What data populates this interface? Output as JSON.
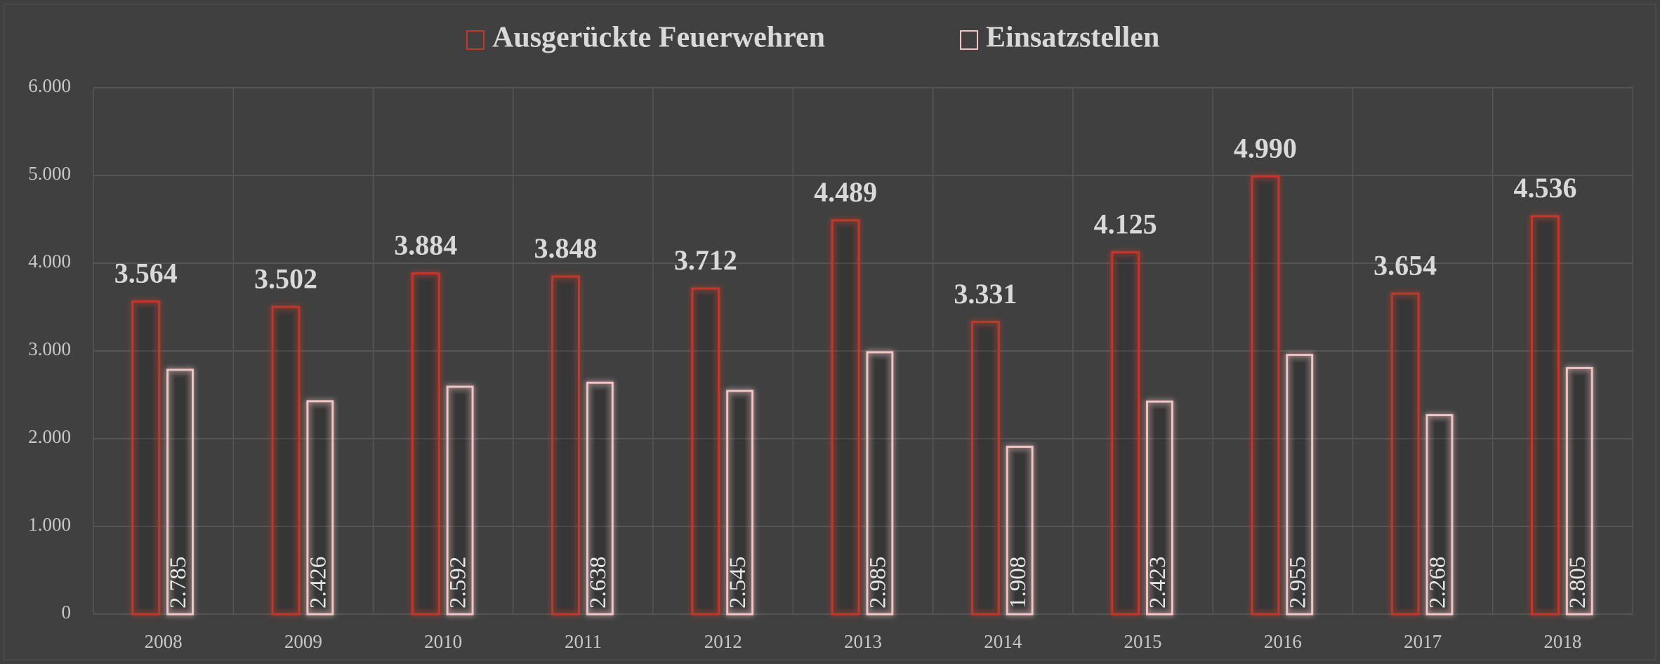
{
  "chart_data": {
    "type": "bar",
    "categories": [
      "2008",
      "2009",
      "2010",
      "2011",
      "2012",
      "2013",
      "2014",
      "2015",
      "2016",
      "2017",
      "2018"
    ],
    "series": [
      {
        "name": "Ausgerückte Feuerwehren",
        "color": "#c0392b",
        "values": [
          3564,
          3502,
          3884,
          3848,
          3712,
          4489,
          3331,
          4125,
          4990,
          3654,
          4536
        ],
        "value_labels": [
          "3.564",
          "3.502",
          "3.884",
          "3.848",
          "3.712",
          "4.489",
          "3.331",
          "4.125",
          "4.990",
          "3.654",
          "4.536"
        ]
      },
      {
        "name": "Einsatzstellen",
        "color": "#f2c4c4",
        "values": [
          2785,
          2426,
          2592,
          2638,
          2545,
          2985,
          1908,
          2423,
          2955,
          2268,
          2805
        ],
        "value_labels": [
          "2.785",
          "2.426",
          "2.592",
          "2.638",
          "2.545",
          "2.985",
          "1.908",
          "2.423",
          "2.955",
          "2.268",
          "2.805"
        ]
      }
    ],
    "ylim": [
      0,
      6000
    ],
    "yticks": [
      {
        "value": 0,
        "label": "0"
      },
      {
        "value": 1000,
        "label": "1.000"
      },
      {
        "value": 2000,
        "label": "2.000"
      },
      {
        "value": 3000,
        "label": "3.000"
      },
      {
        "value": 4000,
        "label": "4.000"
      },
      {
        "value": 5000,
        "label": "5.000"
      },
      {
        "value": 6000,
        "label": "6.000"
      }
    ],
    "grid": true,
    "legend": "top"
  }
}
